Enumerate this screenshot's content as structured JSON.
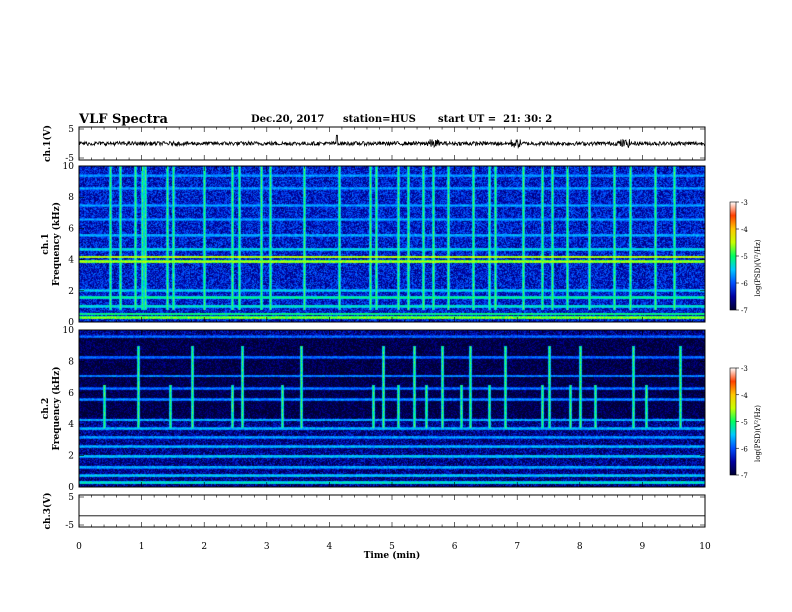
{
  "header": {
    "title": "VLF Spectra",
    "date": "Dec.20, 2017",
    "station": "station=HUS",
    "start_ut": "start UT =  21: 30: 2"
  },
  "chart_data": [
    {
      "type": "line",
      "panel": "ch1-waveform",
      "ylabel": "ch.1(V)",
      "ylim": [
        -5,
        5
      ],
      "yticks": [
        "5",
        "-5"
      ],
      "xlim": [
        0,
        10
      ],
      "description_values": {
        "baseline_v": 0.0,
        "noise_amplitude_v": 0.6
      }
    },
    {
      "type": "heatmap",
      "panel": "ch1-spectrogram",
      "ylabel_line1": "ch.1",
      "ylabel_line2": "Frequency (kHz)",
      "ylim": [
        0,
        10
      ],
      "yticks": [
        "0",
        "2",
        "4",
        "6",
        "8",
        "10"
      ],
      "xlim": [
        0,
        10
      ],
      "background_level": -6.3,
      "bands": [
        {
          "f": 0.3,
          "level": -4.6
        },
        {
          "f": 0.55,
          "level": -5.0
        },
        {
          "f": 1.05,
          "level": -5.2
        },
        {
          "f": 1.6,
          "level": -5.1
        },
        {
          "f": 2.05,
          "level": -5.4
        },
        {
          "f": 3.9,
          "level": -4.5
        },
        {
          "f": 4.2,
          "level": -4.4
        },
        {
          "f": 4.7,
          "level": -5.3
        },
        {
          "f": 5.6,
          "level": -5.5
        },
        {
          "f": 6.6,
          "level": -5.6
        },
        {
          "f": 7.5,
          "level": -5.6
        },
        {
          "f": 8.6,
          "level": -5.6
        },
        {
          "f": 9.4,
          "level": -5.6
        }
      ],
      "spikes": [
        0.5,
        0.65,
        0.9,
        1.0,
        1.05,
        1.4,
        1.5,
        2.0,
        2.45,
        2.55,
        2.9,
        3.05,
        3.6,
        4.15,
        4.65,
        4.75,
        5.1,
        5.25,
        5.5,
        5.65,
        5.9,
        6.3,
        6.55,
        6.65,
        7.1,
        7.4,
        7.55,
        7.8,
        8.15,
        8.55,
        8.8,
        9.2,
        9.5
      ],
      "colorbar": {
        "label": "log(PSD)(V²/Hz)",
        "range": [
          -7,
          -3
        ],
        "ticks": [
          "-3",
          "-4",
          "-5",
          "-6",
          "-7"
        ],
        "colors": [
          "#000033",
          "#0000a0",
          "#0050ff",
          "#00c8ff",
          "#00ff60",
          "#c8ff00",
          "#ffc800",
          "#ff4000",
          "#ffffff"
        ]
      }
    },
    {
      "type": "heatmap",
      "panel": "ch2-spectrogram",
      "ylabel_line1": "ch.2",
      "ylabel_line2": "Frequency (kHz)",
      "ylim": [
        0,
        10
      ],
      "yticks": [
        "0",
        "2",
        "4",
        "6",
        "8",
        "10"
      ],
      "xlim": [
        0,
        10
      ],
      "background_level": -6.6,
      "bands": [
        {
          "f": 0.3,
          "level": -5.2
        },
        {
          "f": 0.75,
          "level": -5.4
        },
        {
          "f": 1.3,
          "level": -5.5
        },
        {
          "f": 2.0,
          "level": -5.4
        },
        {
          "f": 2.6,
          "level": -5.5
        },
        {
          "f": 3.2,
          "level": -5.6
        },
        {
          "f": 3.75,
          "level": -5.5
        },
        {
          "f": 4.3,
          "level": -5.5
        },
        {
          "f": 5.6,
          "level": -5.7
        },
        {
          "f": 6.3,
          "level": -5.8
        },
        {
          "f": 7.1,
          "level": -5.7
        },
        {
          "f": 8.3,
          "level": -5.8
        },
        {
          "f": 9.6,
          "level": -5.8
        }
      ],
      "spikes": [
        0.4,
        0.95,
        1.45,
        1.8,
        2.45,
        2.6,
        3.25,
        3.55,
        4.7,
        4.85,
        5.1,
        5.35,
        5.55,
        5.8,
        6.1,
        6.25,
        6.55,
        6.8,
        7.4,
        7.5,
        7.85,
        8.0,
        8.25,
        8.85,
        9.05,
        9.6
      ],
      "colorbar": {
        "label": "log(PSD)(V²/Hz)",
        "range": [
          -7,
          -3
        ],
        "ticks": [
          "-3",
          "-4",
          "-5",
          "-6",
          "-7"
        ],
        "colors": [
          "#000033",
          "#0000a0",
          "#0050ff",
          "#00c8ff",
          "#00ff60",
          "#c8ff00",
          "#ffc800",
          "#ff4000",
          "#ffffff"
        ]
      }
    },
    {
      "type": "line",
      "panel": "ch3-waveform",
      "ylabel": "ch.3(V)",
      "ylim": [
        -5,
        5
      ],
      "yticks": [
        "5",
        "-5"
      ],
      "xlim": [
        0,
        10
      ],
      "description_values": {
        "baseline_v": -1.5,
        "noise_amplitude_v": 0.0
      }
    }
  ],
  "xaxis": {
    "label": "Time (min)",
    "ticks": [
      "0",
      "1",
      "2",
      "3",
      "4",
      "5",
      "6",
      "7",
      "8",
      "9",
      "10"
    ]
  }
}
